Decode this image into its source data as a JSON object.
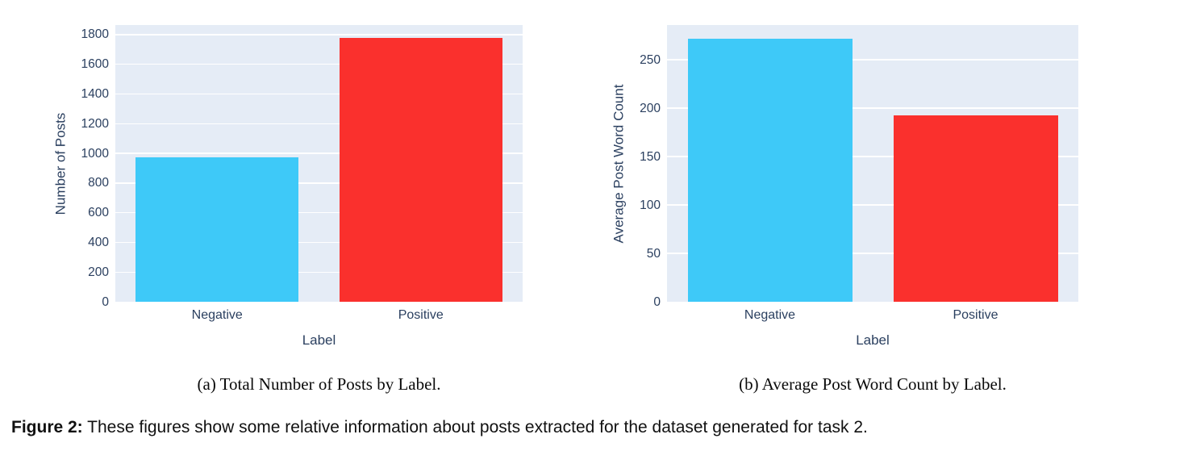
{
  "colors": {
    "plot_bg": "#e5ecf6",
    "grid": "#ffffff",
    "axis_text": "#2a3f5f",
    "negative_bar": "#3ec9f8",
    "positive_bar": "#fa302d",
    "page_bg": "#ffffff"
  },
  "chart_data": [
    {
      "id": "posts-by-label",
      "type": "bar",
      "title": "",
      "categories": [
        "Negative",
        "Positive"
      ],
      "values": [
        975,
        1780
      ],
      "bar_colors": [
        "#3ec9f8",
        "#fa302d"
      ],
      "xlabel": "Label",
      "ylabel": "Number of Posts",
      "ylim": [
        0,
        1865
      ],
      "yticks": [
        0,
        200,
        400,
        600,
        800,
        1000,
        1200,
        1400,
        1600,
        1800
      ],
      "grid": true,
      "legend": "none",
      "caption": "(a) Total Number of Posts by Label."
    },
    {
      "id": "word-count-by-label",
      "type": "bar",
      "title": "",
      "categories": [
        "Negative",
        "Positive"
      ],
      "values": [
        272,
        193
      ],
      "bar_colors": [
        "#3ec9f8",
        "#fa302d"
      ],
      "xlabel": "Label",
      "ylabel": "Average Post Word Count",
      "ylim": [
        0,
        286
      ],
      "yticks": [
        0,
        50,
        100,
        150,
        200,
        250
      ],
      "grid": true,
      "legend": "none",
      "caption": "(b) Average Post Word Count by Label."
    }
  ],
  "figure_caption": {
    "label": "Figure 2:",
    "text": "These figures show some relative information about posts extracted for the dataset generated for task 2."
  }
}
